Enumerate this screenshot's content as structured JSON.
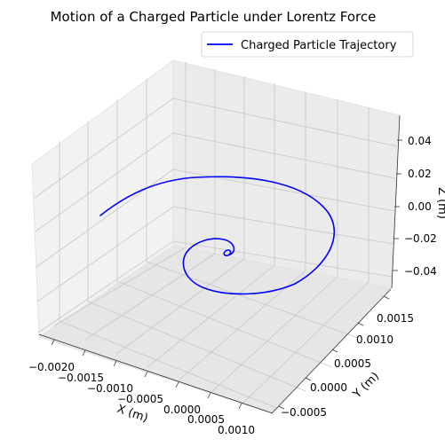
{
  "chart_data": {
    "type": "line3d",
    "title": "Motion of a Charged Particle under Lorentz Force",
    "xlabel": "X (m)",
    "ylabel": "Y (m)",
    "zlabel": "Z (m)",
    "xticks": [
      "−0.0020",
      "−0.0015",
      "−0.0010",
      "−0.0005",
      "0.0000",
      "0.0005",
      "0.0010"
    ],
    "yticks": [
      "−0.0005",
      "0.0000",
      "0.0005",
      "0.0010",
      "0.0015"
    ],
    "zticks": [
      "−0.04",
      "−0.02",
      "0.00",
      "0.02",
      "0.04"
    ],
    "legend": "top-right",
    "grid": true,
    "series": [
      {
        "name": "Charged Particle Trajectory",
        "color": "#0000ff",
        "description": "decaying spiral at z = 0",
        "start": {
          "x": -0.0021,
          "y": 0.0001,
          "z": 0.0
        },
        "end": {
          "x": 0.0,
          "y": 0.0,
          "z": 0.0
        }
      }
    ]
  }
}
